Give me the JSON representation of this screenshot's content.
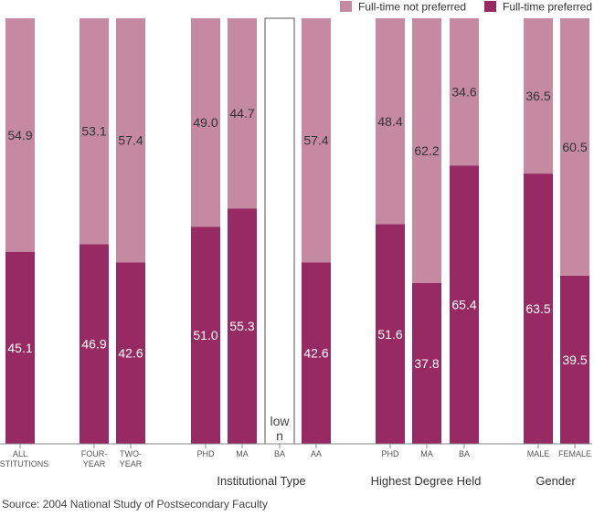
{
  "chart_data": {
    "type": "bar",
    "stacked": true,
    "ylim": [
      0,
      100
    ],
    "grid": false,
    "legend_position": "top-right",
    "series": [
      {
        "name": "Full-time preferred",
        "color": "#982a63",
        "values": [
          45.1,
          46.9,
          42.6,
          51.0,
          55.3,
          null,
          42.6,
          51.6,
          37.8,
          65.4,
          63.5,
          39.5
        ]
      },
      {
        "name": "Full-time not preferred",
        "color": "#c58aa2",
        "values": [
          54.9,
          53.1,
          57.4,
          49.0,
          44.7,
          null,
          57.4,
          48.4,
          62.2,
          34.6,
          36.5,
          60.5
        ]
      }
    ],
    "categories": [
      {
        "label": "ALL INSTITUTIONS",
        "lines": [
          "ALL",
          "INSTITUTIONS"
        ]
      },
      {
        "label": "FOUR-YEAR",
        "lines": [
          "FOUR-",
          "YEAR"
        ]
      },
      {
        "label": "TWO-YEAR",
        "lines": [
          "TWO-",
          "YEAR"
        ]
      },
      {
        "label": "PHD",
        "lines": [
          "PHD"
        ]
      },
      {
        "label": "MA",
        "lines": [
          "MA"
        ]
      },
      {
        "label": "BA",
        "lines": [
          "BA"
        ],
        "note_lines": [
          "low",
          "n"
        ]
      },
      {
        "label": "AA",
        "lines": [
          "AA"
        ]
      },
      {
        "label": "PHD",
        "lines": [
          "PHD"
        ]
      },
      {
        "label": "MA",
        "lines": [
          "MA"
        ]
      },
      {
        "label": "BA",
        "lines": [
          "BA"
        ]
      },
      {
        "label": "MALE",
        "lines": [
          "MALE"
        ]
      },
      {
        "label": "FEMALE",
        "lines": [
          "FEMALE"
        ]
      }
    ],
    "group_labels": [
      {
        "label": "Institutional Type"
      },
      {
        "label": "Highest Degree Held"
      },
      {
        "label": "Gender"
      }
    ]
  },
  "source": "Source: 2004 National Study of Postsecondary Faculty"
}
